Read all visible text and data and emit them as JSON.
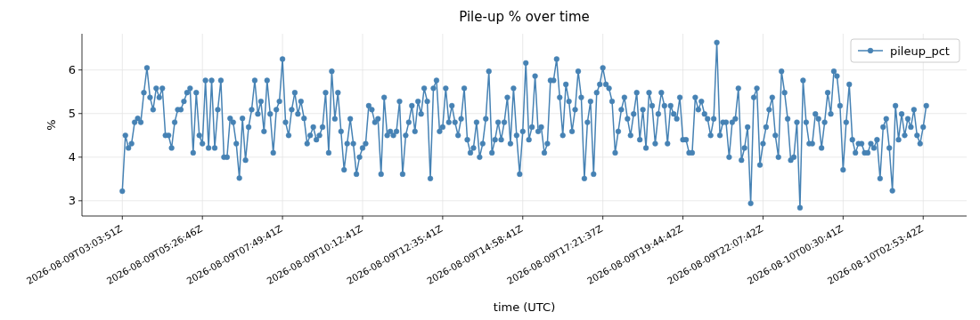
{
  "chart_data": {
    "type": "line",
    "title": "Pile-up % over time",
    "xlabel": "time (UTC)",
    "ylabel": "%",
    "categories": [
      "2026-08-09T03:03:51Z",
      null,
      null,
      null,
      null,
      null,
      null,
      null,
      null,
      null,
      null,
      null,
      null,
      null,
      null,
      null,
      null,
      null,
      null,
      null,
      null,
      null,
      null,
      null,
      null,
      null,
      "2026-08-09T05:26:46Z",
      null,
      null,
      null,
      null,
      null,
      null,
      null,
      null,
      null,
      null,
      null,
      null,
      null,
      null,
      null,
      null,
      null,
      null,
      null,
      null,
      null,
      null,
      null,
      null,
      null,
      "2026-08-09T07:49:41Z",
      null,
      null,
      null,
      null,
      null,
      null,
      null,
      null,
      null,
      null,
      null,
      null,
      null,
      null,
      null,
      null,
      null,
      null,
      null,
      null,
      null,
      null,
      null,
      null,
      null,
      "2026-08-09T10:12:41Z",
      null,
      null,
      null,
      null,
      null,
      null,
      null,
      null,
      null,
      null,
      null,
      null,
      null,
      null,
      null,
      null,
      null,
      null,
      null,
      null,
      null,
      null,
      null,
      null,
      null,
      "2026-08-09T12:35:41Z",
      null,
      null,
      null,
      null,
      null,
      null,
      null,
      null,
      null,
      null,
      null,
      null,
      null,
      null,
      null,
      null,
      null,
      null,
      null,
      null,
      null,
      null,
      null,
      null,
      null,
      "2026-08-09T14:58:41Z",
      null,
      null,
      null,
      null,
      null,
      null,
      null,
      null,
      null,
      null,
      null,
      null,
      null,
      null,
      null,
      null,
      null,
      null,
      null,
      null,
      null,
      null,
      null,
      null,
      null,
      "2026-08-09T17:21:37Z",
      null,
      null,
      null,
      null,
      null,
      null,
      null,
      null,
      null,
      null,
      null,
      null,
      null,
      null,
      null,
      null,
      null,
      null,
      null,
      null,
      null,
      null,
      null,
      null,
      null,
      "2026-08-09T19:44:42Z",
      null,
      null,
      null,
      null,
      null,
      null,
      null,
      null,
      null,
      null,
      null,
      null,
      null,
      null,
      null,
      null,
      null,
      null,
      null,
      null,
      null,
      null,
      null,
      null,
      null,
      "2026-08-09T22:07:42Z",
      null,
      null,
      null,
      null,
      null,
      null,
      null,
      null,
      null,
      null,
      null,
      null,
      null,
      null,
      null,
      null,
      null,
      null,
      null,
      null,
      null,
      null,
      null,
      null,
      null,
      "2026-08-10T00:30:41Z",
      null,
      null,
      null,
      null,
      null,
      null,
      null,
      null,
      null,
      null,
      null,
      null,
      null,
      null,
      null,
      null,
      null,
      null,
      null,
      null,
      null,
      null,
      null,
      null,
      null,
      "2026-08-10T02:53:42Z",
      null
    ],
    "series": [
      {
        "name": "pileup_pct",
        "color": "#4682b4",
        "values": [
          3.22,
          4.5,
          4.21,
          4.31,
          4.8,
          4.89,
          4.8,
          5.48,
          6.05,
          5.37,
          5.09,
          5.58,
          5.37,
          5.58,
          4.5,
          4.5,
          4.21,
          4.8,
          5.09,
          5.09,
          5.28,
          5.48,
          5.58,
          4.1,
          5.48,
          4.5,
          4.31,
          5.76,
          4.21,
          5.76,
          4.21,
          5.09,
          5.76,
          4.0,
          4.0,
          4.89,
          4.8,
          4.31,
          3.52,
          4.89,
          3.93,
          4.69,
          5.09,
          5.76,
          4.99,
          5.28,
          4.59,
          5.76,
          4.99,
          4.1,
          5.09,
          5.28,
          6.25,
          4.8,
          4.5,
          5.09,
          5.48,
          4.99,
          5.28,
          4.89,
          4.31,
          4.5,
          4.69,
          4.4,
          4.5,
          4.69,
          5.48,
          4.1,
          5.97,
          4.88,
          5.48,
          4.59,
          3.71,
          4.31,
          4.88,
          4.31,
          3.61,
          4.0,
          4.21,
          4.31,
          5.18,
          5.09,
          4.8,
          4.88,
          3.61,
          5.37,
          4.5,
          4.59,
          4.5,
          4.59,
          5.28,
          3.61,
          4.5,
          4.8,
          5.18,
          4.59,
          5.28,
          4.99,
          5.58,
          5.28,
          3.51,
          5.58,
          5.76,
          4.59,
          4.69,
          5.58,
          4.8,
          5.18,
          4.8,
          4.5,
          4.88,
          5.58,
          4.4,
          4.1,
          4.21,
          4.8,
          4.0,
          4.31,
          4.88,
          5.97,
          4.1,
          4.4,
          4.8,
          4.4,
          4.8,
          5.37,
          4.31,
          5.58,
          4.5,
          3.61,
          4.59,
          6.16,
          4.4,
          4.69,
          5.86,
          4.59,
          4.69,
          4.1,
          4.31,
          5.76,
          5.76,
          6.25,
          5.37,
          4.5,
          5.67,
          5.28,
          4.59,
          5.09,
          5.97,
          5.37,
          3.51,
          4.8,
          5.28,
          3.61,
          5.48,
          5.67,
          6.05,
          5.67,
          5.58,
          5.28,
          4.1,
          4.59,
          5.09,
          5.37,
          4.88,
          4.5,
          4.99,
          5.48,
          4.4,
          5.09,
          4.21,
          5.48,
          5.18,
          4.31,
          4.99,
          5.48,
          5.18,
          4.31,
          5.18,
          4.99,
          4.88,
          5.37,
          4.4,
          4.4,
          4.1,
          4.1,
          5.37,
          5.09,
          5.28,
          4.99,
          4.88,
          4.5,
          4.88,
          6.63,
          4.5,
          4.8,
          4.8,
          4.0,
          4.8,
          4.88,
          5.58,
          3.93,
          4.21,
          4.69,
          2.94,
          5.37,
          5.58,
          3.82,
          4.31,
          4.69,
          5.09,
          5.37,
          4.5,
          4.0,
          5.97,
          5.48,
          4.88,
          3.93,
          4.0,
          4.8,
          2.84,
          5.76,
          4.8,
          4.31,
          4.31,
          4.99,
          4.88,
          4.21,
          4.8,
          5.48,
          4.99,
          5.97,
          5.86,
          5.18,
          3.71,
          4.8,
          5.67,
          4.4,
          4.1,
          4.31,
          4.31,
          4.1,
          4.1,
          4.31,
          4.21,
          4.4,
          3.51,
          4.69,
          4.88,
          4.21,
          3.23,
          5.18,
          4.4,
          4.99,
          4.5,
          4.88,
          4.69,
          5.09,
          4.5,
          4.31,
          4.69,
          5.18
        ]
      }
    ],
    "ylim": [
      2.65,
      6.83
    ],
    "yticks": [
      3,
      4,
      5,
      6
    ],
    "grid": true,
    "legend": "top right",
    "marker": "circle",
    "line_style": "solid"
  }
}
